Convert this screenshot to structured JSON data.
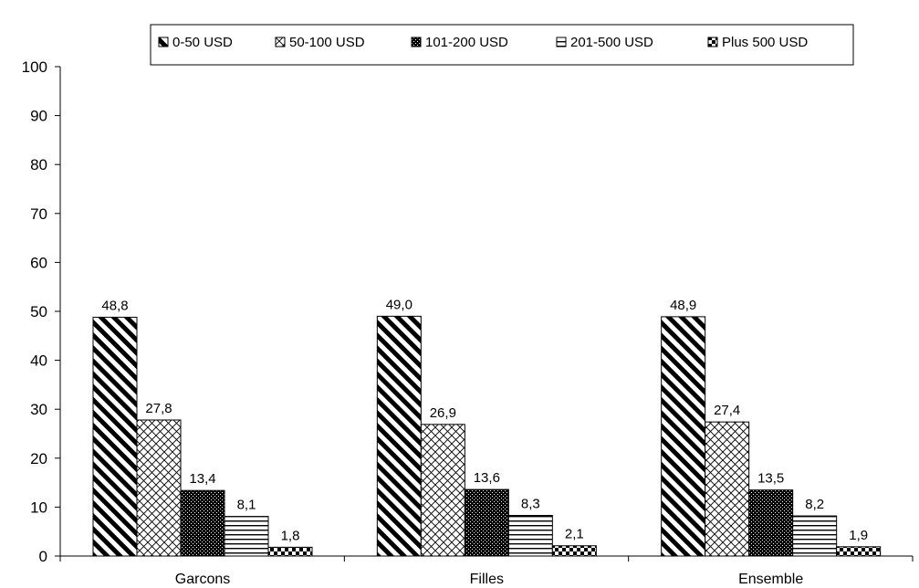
{
  "chart_data": {
    "type": "bar",
    "categories": [
      "Garcons",
      "Filles",
      "Ensemble"
    ],
    "series": [
      {
        "name": "0-50 USD",
        "values": [
          48.8,
          49.0,
          48.9
        ],
        "labels": [
          "48,8",
          "49,0",
          "48,9"
        ],
        "pattern": "diag-hatch"
      },
      {
        "name": "50-100 USD",
        "values": [
          27.8,
          26.9,
          27.4
        ],
        "labels": [
          "27,8",
          "26,9",
          "27,4"
        ],
        "pattern": "cross-hatch"
      },
      {
        "name": "101-200 USD",
        "values": [
          13.4,
          13.6,
          13.5
        ],
        "labels": [
          "13,4",
          "13,6",
          "13,5"
        ],
        "pattern": "dotted-dark"
      },
      {
        "name": "201-500 USD",
        "values": [
          8.1,
          8.3,
          8.2
        ],
        "labels": [
          "8,1",
          "8,3",
          "8,2"
        ],
        "pattern": "horizontal-lines"
      },
      {
        "name": "Plus 500 USD",
        "values": [
          1.8,
          2.1,
          1.9
        ],
        "labels": [
          "1,8",
          "2,1",
          "1,9"
        ],
        "pattern": "checker"
      }
    ],
    "ylim": [
      0,
      100
    ],
    "yticks": [
      "0",
      "10",
      "20",
      "30",
      "40",
      "50",
      "60",
      "70",
      "80",
      "90",
      "100"
    ],
    "legend_position": "top-right",
    "grid": false
  }
}
